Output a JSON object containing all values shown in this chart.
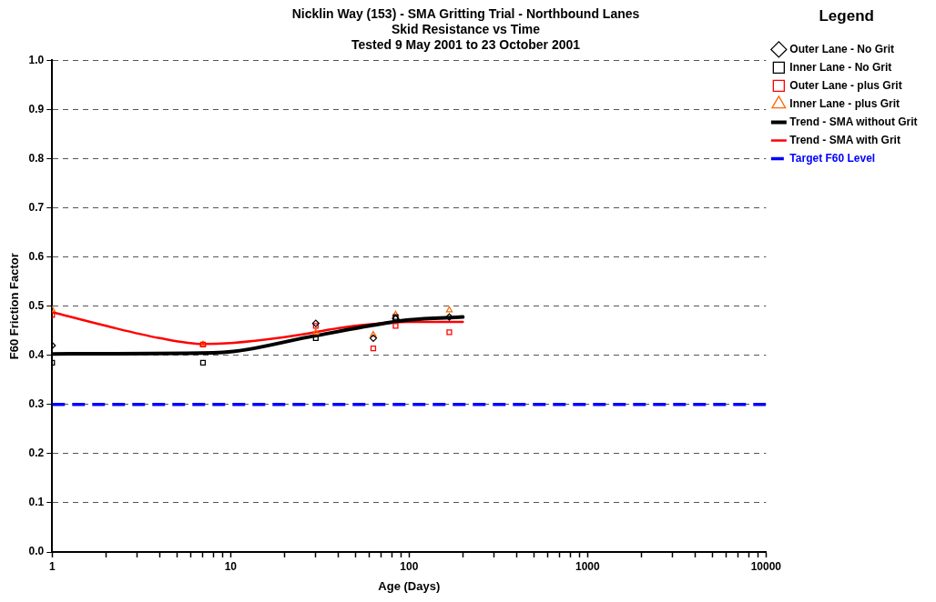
{
  "chart_data": {
    "type": "scatter",
    "title": [
      "Nicklin Way (153) - SMA Gritting Trial - Northbound Lanes",
      "Skid Resistance vs Time",
      "Tested 9 May 2001 to 23 October 2001"
    ],
    "xlabel": "Age (Days)",
    "ylabel": "F60 Friction Factor",
    "legend_title": "Legend",
    "legend": "right",
    "log": "x",
    "grid": "y",
    "xlim": [
      1,
      10000
    ],
    "ylim": [
      0,
      1
    ],
    "xticks": [
      1,
      {
        "value": 2,
        "label": null
      },
      {
        "value": 3,
        "label": null
      },
      {
        "value": 4,
        "label": null
      },
      {
        "value": 5,
        "label": null
      },
      {
        "value": 6,
        "label": null
      },
      {
        "value": 7,
        "label": null
      },
      {
        "value": 8,
        "label": null
      },
      {
        "value": 9,
        "label": null
      },
      10,
      {
        "value": 20,
        "label": null
      },
      {
        "value": 30,
        "label": null
      },
      {
        "value": 40,
        "label": null
      },
      {
        "value": 50,
        "label": null
      },
      {
        "value": 60,
        "label": null
      },
      {
        "value": 70,
        "label": null
      },
      {
        "value": 80,
        "label": null
      },
      {
        "value": 90,
        "label": null
      },
      100,
      {
        "value": 200,
        "label": null
      },
      {
        "value": 300,
        "label": null
      },
      {
        "value": 400,
        "label": null
      },
      {
        "value": 500,
        "label": null
      },
      {
        "value": 600,
        "label": null
      },
      {
        "value": 700,
        "label": null
      },
      {
        "value": 800,
        "label": null
      },
      {
        "value": 900,
        "label": null
      },
      1000,
      {
        "value": 2000,
        "label": null
      },
      {
        "value": 3000,
        "label": null
      },
      {
        "value": 4000,
        "label": null
      },
      {
        "value": 5000,
        "label": null
      },
      {
        "value": 6000,
        "label": null
      },
      {
        "value": 7000,
        "label": null
      },
      {
        "value": 8000,
        "label": null
      },
      {
        "value": 9000,
        "label": null
      },
      10000
    ],
    "yticks": [
      {
        "value": 0,
        "label": "0.0"
      },
      0.1,
      0.2,
      0.3,
      0.4,
      0.5,
      0.6,
      0.7,
      0.8,
      0.9,
      {
        "value": 1,
        "label": "1.0"
      }
    ],
    "x": [
      1,
      7,
      30,
      63,
      84,
      168
    ],
    "series": [
      {
        "name": "Outer Lane - No Grit",
        "color": "#000000",
        "marker": "diamond",
        "values": [
          0.42,
          null,
          0.465,
          0.435,
          0.475,
          0.478
        ]
      },
      {
        "name": "Inner Lane - No Grit",
        "color": "#000000",
        "marker": "square",
        "values": [
          0.385,
          0.385,
          0.435,
          null,
          0.478,
          null
        ]
      },
      {
        "name": "Outer Lane - plus Grit",
        "color": "#ff0000",
        "marker": "square",
        "values": [
          0.482,
          0.422,
          0.46,
          0.414,
          0.46,
          0.447
        ]
      },
      {
        "name": "Inner Lane - plus Grit",
        "color": "#ff6600",
        "marker": "triangle",
        "values": [
          0.493,
          0.422,
          0.446,
          0.442,
          0.483,
          0.492
        ]
      },
      {
        "name": "Trend - SMA without Grit",
        "color": "#000000",
        "type": "line",
        "marker": "none",
        "x": [
          1,
          8,
          30,
          60,
          100,
          200
        ],
        "values": [
          0.403,
          0.405,
          0.44,
          0.46,
          0.472,
          0.478
        ]
      },
      {
        "name": "Trend - SMA with Grit",
        "color": "#ff0000",
        "type": "line",
        "marker": "none",
        "x": [
          1,
          2,
          4,
          7,
          10,
          20,
          50,
          100,
          200
        ],
        "values": [
          0.488,
          0.46,
          0.435,
          0.423,
          0.425,
          0.437,
          0.46,
          0.468,
          0.468
        ]
      }
    ],
    "ref_lines": [
      {
        "axis": "y",
        "value": 0.3,
        "label": "Target F60 Level",
        "color": "#0000ff",
        "line_style": "dashed"
      }
    ]
  }
}
